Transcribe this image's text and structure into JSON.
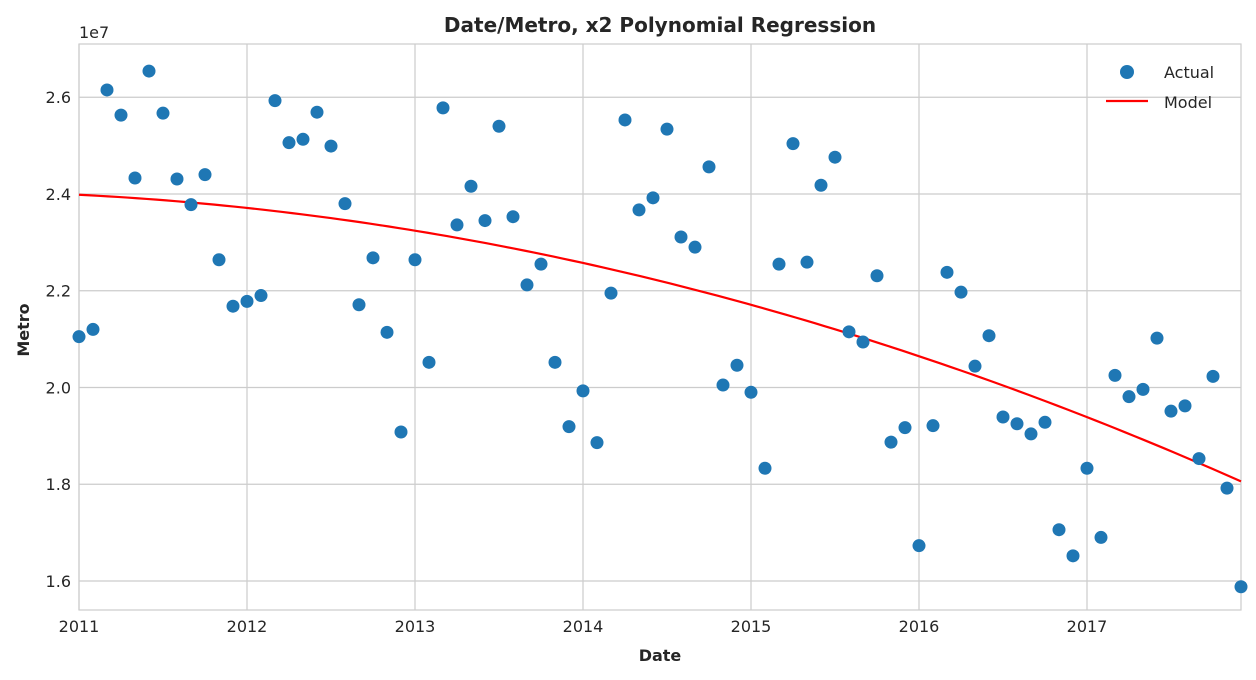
{
  "chart_data": {
    "type": "scatter",
    "title": "Date/Metro, x2 Polynomial Regression",
    "xlabel": "Date",
    "ylabel": "Metro",
    "y_exponent_label": "1e7",
    "xlim": [
      "2011-01",
      "2017-12"
    ],
    "ylim": [
      1.54,
      2.71
    ],
    "x_ticks": [
      "2011",
      "2012",
      "2013",
      "2014",
      "2015",
      "2016",
      "2017"
    ],
    "y_ticks": [
      "1.6",
      "1.8",
      "2.0",
      "2.2",
      "2.4",
      "2.6"
    ],
    "grid": true,
    "legend_position": "top-right",
    "series": [
      {
        "name": "Actual",
        "kind": "scatter",
        "color": "#1f77b4",
        "x": [
          "2011-01",
          "2011-02",
          "2011-03",
          "2011-04",
          "2011-05",
          "2011-06",
          "2011-07",
          "2011-08",
          "2011-09",
          "2011-10",
          "2011-11",
          "2011-12",
          "2012-01",
          "2012-02",
          "2012-03",
          "2012-04",
          "2012-05",
          "2012-06",
          "2012-07",
          "2012-08",
          "2012-09",
          "2012-10",
          "2012-11",
          "2012-12",
          "2013-01",
          "2013-02",
          "2013-03",
          "2013-04",
          "2013-05",
          "2013-06",
          "2013-07",
          "2013-08",
          "2013-09",
          "2013-10",
          "2013-11",
          "2013-12",
          "2014-01",
          "2014-02",
          "2014-03",
          "2014-04",
          "2014-05",
          "2014-06",
          "2014-07",
          "2014-08",
          "2014-09",
          "2014-10",
          "2014-11",
          "2014-12",
          "2015-01",
          "2015-02",
          "2015-03",
          "2015-04",
          "2015-05",
          "2015-06",
          "2015-07",
          "2015-08",
          "2015-09",
          "2015-10",
          "2015-11",
          "2015-12",
          "2016-01",
          "2016-02",
          "2016-03",
          "2016-04",
          "2016-05",
          "2016-06",
          "2016-07",
          "2016-08",
          "2016-09",
          "2016-10",
          "2016-11",
          "2016-12",
          "2017-01",
          "2017-02",
          "2017-03",
          "2017-04",
          "2017-05",
          "2017-06",
          "2017-07",
          "2017-08",
          "2017-09",
          "2017-10",
          "2017-11",
          "2017-12"
        ],
        "values": [
          2.105,
          2.12,
          2.615,
          2.563,
          2.433,
          2.654,
          2.567,
          2.431,
          2.378,
          2.44,
          2.264,
          2.168,
          2.178,
          2.19,
          2.593,
          2.506,
          2.513,
          2.569,
          2.499,
          2.38,
          2.171,
          2.268,
          2.114,
          1.908,
          2.264,
          2.052,
          2.578,
          2.336,
          2.416,
          2.345,
          2.54,
          2.353,
          2.212,
          2.255,
          2.052,
          1.919,
          1.993,
          1.886,
          2.195,
          2.553,
          2.367,
          2.392,
          2.534,
          2.311,
          2.29,
          2.456,
          2.005,
          2.046,
          1.99,
          1.833,
          2.255,
          2.504,
          2.259,
          2.418,
          2.476,
          2.115,
          2.094,
          2.231,
          1.887,
          1.917,
          1.673,
          1.921,
          2.238,
          2.197,
          2.044,
          2.107,
          1.939,
          1.925,
          1.904,
          1.928,
          1.706,
          1.652,
          1.833,
          1.69,
          2.025,
          1.981,
          1.996,
          2.102,
          1.951,
          1.962,
          1.853,
          2.023,
          1.792,
          1.588
        ]
      },
      {
        "name": "Model",
        "kind": "line",
        "color": "#ff0000",
        "polynomial_order": 2,
        "x": [
          "2011-01",
          "2012-01",
          "2013-01",
          "2014-01",
          "2015-01",
          "2016-01",
          "2017-01",
          "2017-12"
        ],
        "values": [
          2.398,
          2.372,
          2.324,
          2.257,
          2.17,
          2.065,
          1.94,
          1.805
        ]
      }
    ]
  }
}
